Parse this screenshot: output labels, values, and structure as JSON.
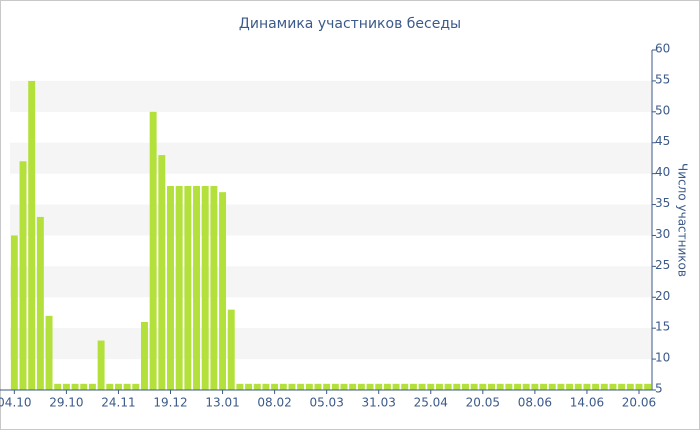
{
  "chart_data": {
    "type": "bar",
    "title": "Динамика участников беседы",
    "y_label": "Число участников",
    "categories": [
      "04.10",
      null,
      null,
      null,
      null,
      null,
      "29.10",
      null,
      null,
      null,
      null,
      null,
      "24.11",
      null,
      null,
      null,
      null,
      null,
      "19.12",
      null,
      null,
      null,
      null,
      null,
      "13.01",
      null,
      null,
      null,
      null,
      null,
      "08.02",
      null,
      null,
      null,
      null,
      null,
      "05.03",
      null,
      null,
      null,
      null,
      null,
      "31.03",
      null,
      null,
      null,
      null,
      null,
      "25.04",
      null,
      null,
      null,
      null,
      null,
      "20.05",
      null,
      null,
      null,
      null,
      null,
      "08.06",
      null,
      null,
      null,
      null,
      null,
      "14.06",
      null,
      null,
      null,
      null,
      null,
      "20.06",
      null
    ],
    "values": [
      30,
      42,
      55,
      33,
      17,
      6,
      6,
      6,
      6,
      6,
      13,
      6,
      6,
      6,
      6,
      16,
      50,
      43,
      38,
      38,
      38,
      38,
      38,
      38,
      37,
      18,
      6,
      6,
      6,
      6,
      6,
      6,
      6,
      6,
      6,
      6,
      6,
      6,
      6,
      6,
      6,
      6,
      6,
      6,
      6,
      6,
      6,
      6,
      6,
      6,
      6,
      6,
      6,
      6,
      6,
      6,
      6,
      6,
      6,
      6,
      6,
      6,
      6,
      6,
      6,
      6,
      6,
      6,
      6,
      6,
      6,
      6,
      6,
      6
    ],
    "color": "#b3e03a",
    "ylim": [
      5,
      60
    ],
    "yticks": [
      5,
      10,
      15,
      20,
      25,
      30,
      35,
      40,
      45,
      50,
      55,
      60
    ],
    "grid": "bands",
    "y_axis_side": "right"
  }
}
